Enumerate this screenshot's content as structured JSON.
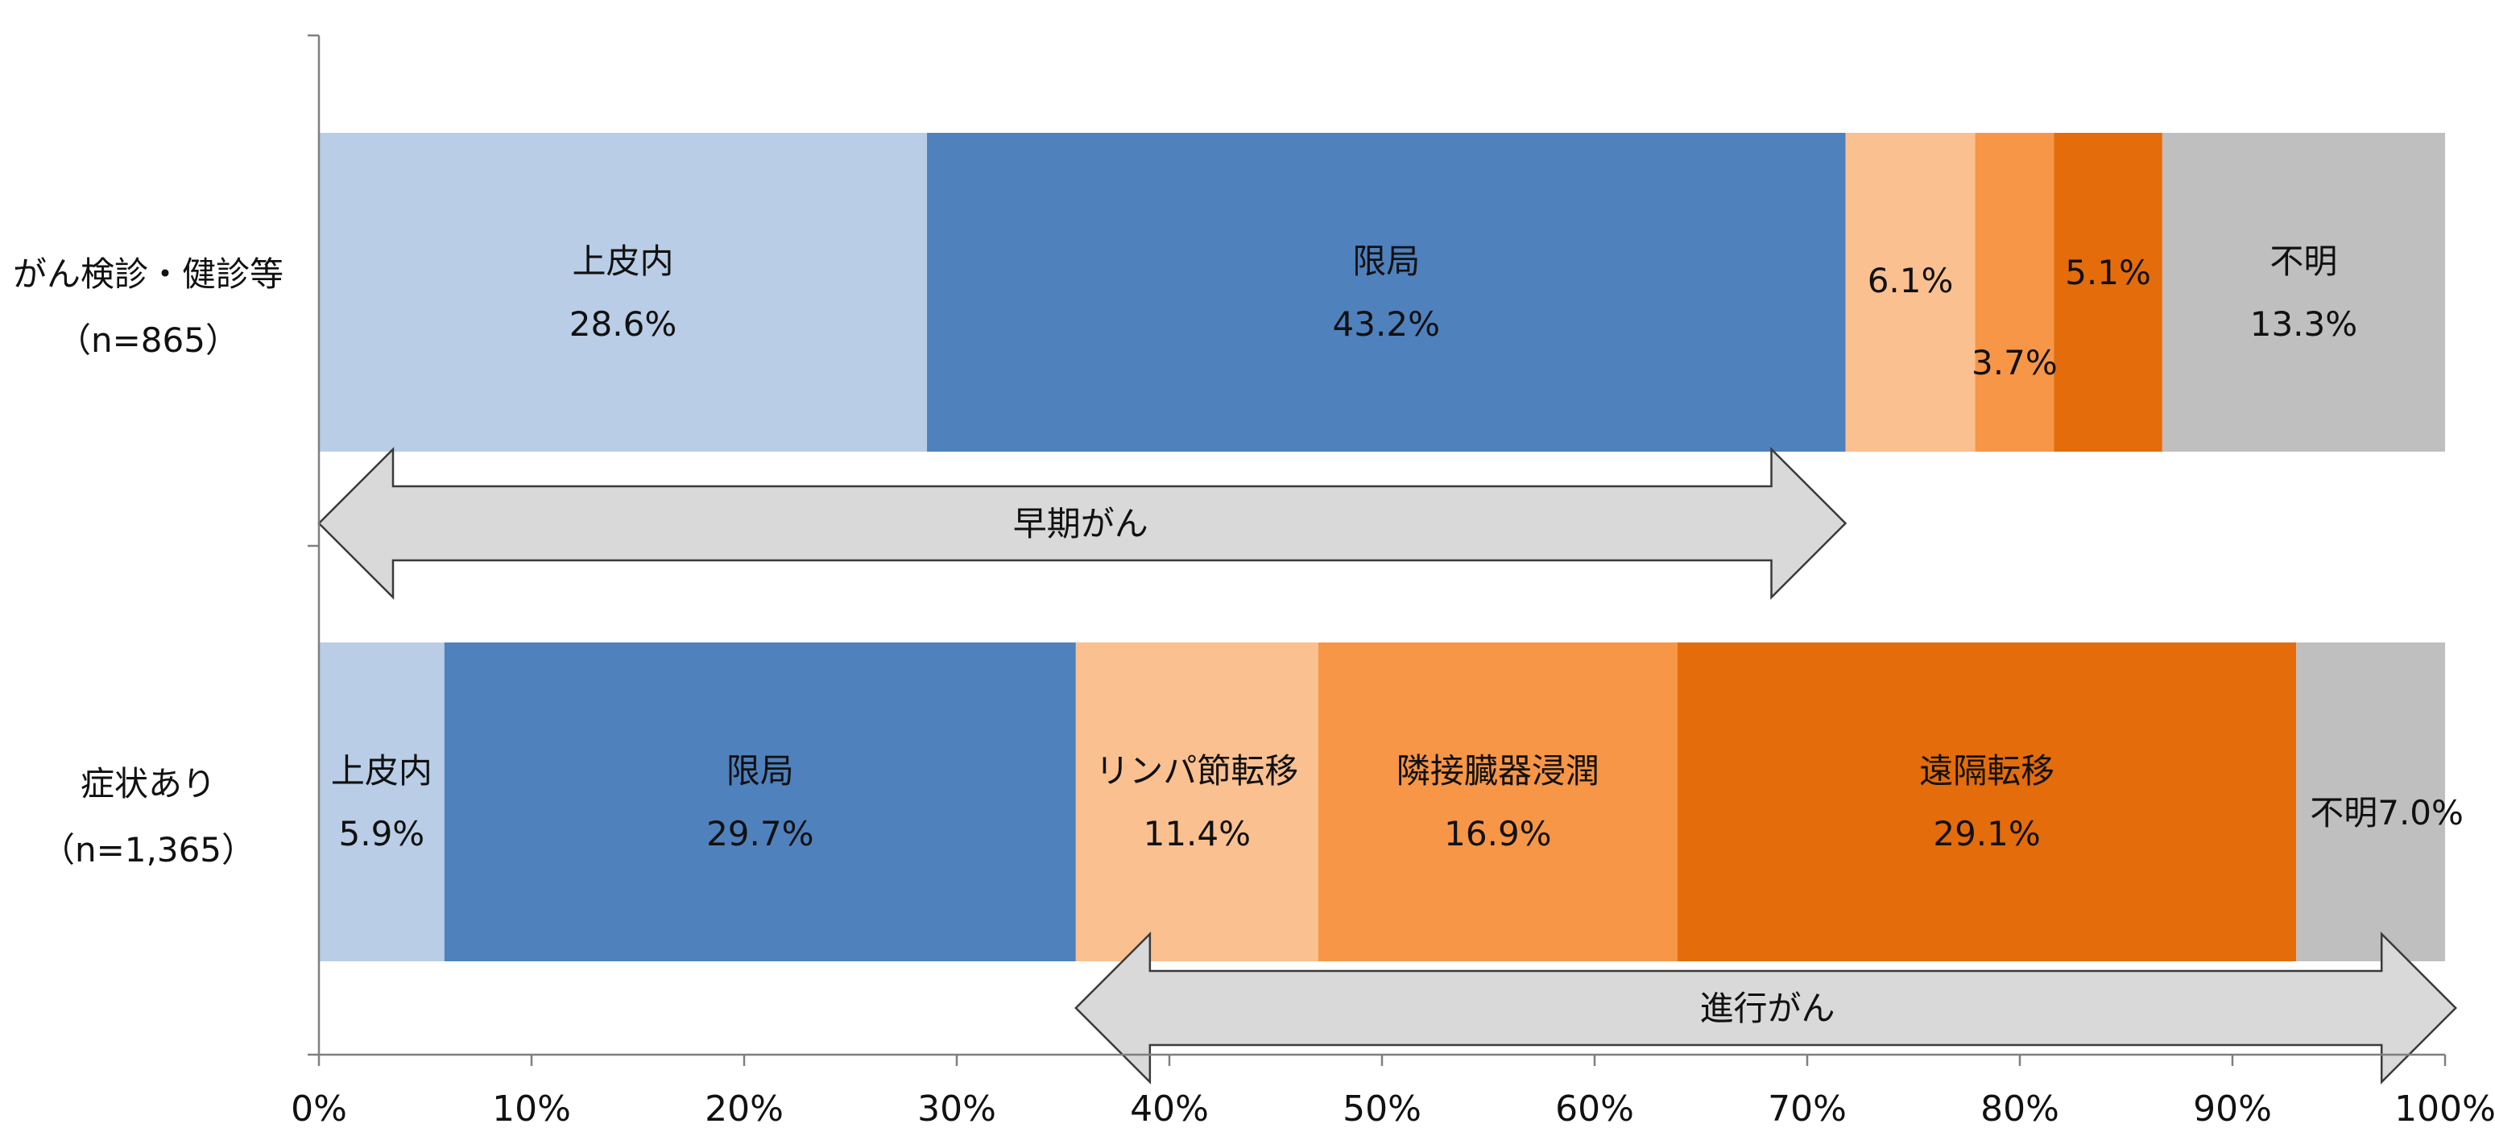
{
  "chart_data": {
    "type": "bar",
    "orientation": "horizontal",
    "stacked": true,
    "xlim": [
      0,
      100
    ],
    "x_ticks": [
      "0%",
      "10%",
      "20%",
      "30%",
      "40%",
      "50%",
      "60%",
      "70%",
      "80%",
      "90%",
      "100%"
    ],
    "colors": {
      "上皮内": "#b9cde6",
      "限局": "#4f81bd",
      "リンパ節転移": "#fac090",
      "隣接臓器浸潤": "#f79646",
      "遠隔転移": "#e46c0a",
      "不明": "#bfbfbf"
    },
    "categories": [
      {
        "name": "がん検診・健診等",
        "n_label": "（n=865）",
        "segments": [
          {
            "name": "上皮内",
            "value": 28.6,
            "label": "上皮内",
            "value_label": "28.6%"
          },
          {
            "name": "限局",
            "value": 43.2,
            "label": "限局",
            "value_label": "43.2%"
          },
          {
            "name": "リンパ節転移",
            "value": 6.1,
            "label": "",
            "value_label": "6.1%"
          },
          {
            "name": "隣接臓器浸潤",
            "value": 3.7,
            "label": "",
            "value_label": "3.7%"
          },
          {
            "name": "遠隔転移",
            "value": 5.1,
            "label": "",
            "value_label": "5.1%"
          },
          {
            "name": "不明",
            "value": 13.3,
            "label": "不明",
            "value_label": "13.3%"
          }
        ]
      },
      {
        "name": "症状あり",
        "n_label": "（n=1,365）",
        "segments": [
          {
            "name": "上皮内",
            "value": 5.9,
            "label": "上皮内",
            "value_label": "5.9%"
          },
          {
            "name": "限局",
            "value": 29.7,
            "label": "限局",
            "value_label": "29.7%"
          },
          {
            "name": "リンパ節転移",
            "value": 11.4,
            "label": "リンパ節転移",
            "value_label": "11.4%"
          },
          {
            "name": "隣接臓器浸潤",
            "value": 16.9,
            "label": "隣接臓器浸潤",
            "value_label": "16.9%"
          },
          {
            "name": "遠隔転移",
            "value": 29.1,
            "label": "遠隔転移",
            "value_label": "29.1%"
          },
          {
            "name": "不明",
            "value": 7.0,
            "label": "",
            "value_label": "不明7.0%"
          }
        ]
      }
    ],
    "annotations": [
      {
        "label": "早期がん",
        "from": 0,
        "to": 71.8
      },
      {
        "label": "進行がん",
        "from": 35.6,
        "to": 100.5
      }
    ]
  }
}
